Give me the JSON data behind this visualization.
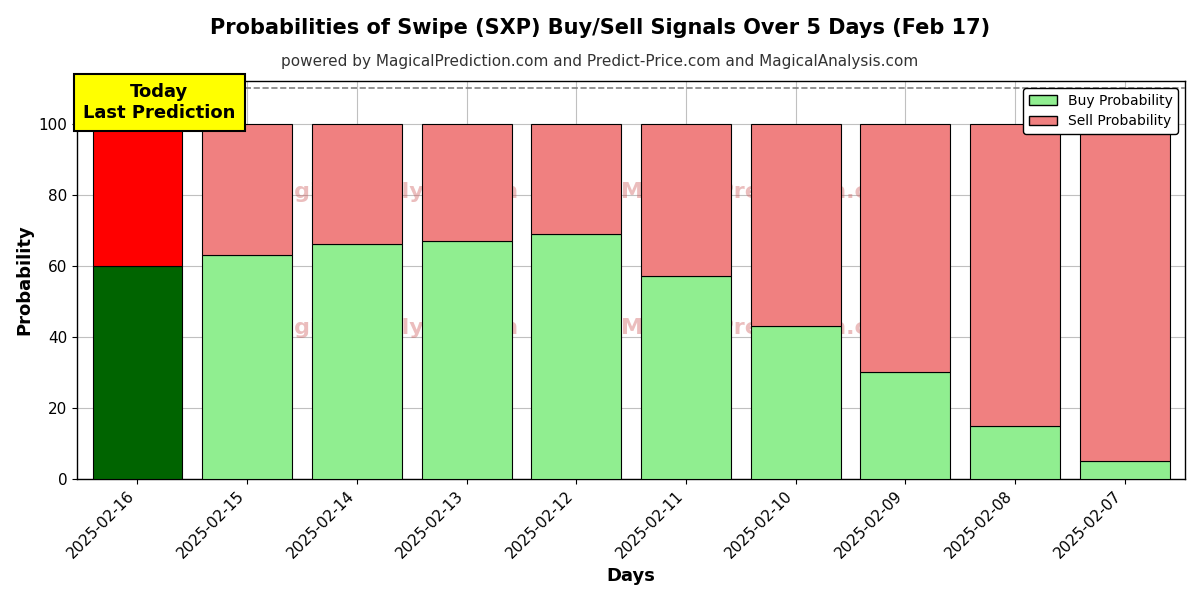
{
  "title": "Probabilities of Swipe (SXP) Buy/Sell Signals Over 5 Days (Feb 17)",
  "subtitle": "powered by MagicalPrediction.com and Predict-Price.com and MagicalAnalysis.com",
  "xlabel": "Days",
  "ylabel": "Probability",
  "dates": [
    "2025-02-16",
    "2025-02-15",
    "2025-02-14",
    "2025-02-13",
    "2025-02-12",
    "2025-02-11",
    "2025-02-10",
    "2025-02-09",
    "2025-02-08",
    "2025-02-07"
  ],
  "buy_values": [
    60,
    63,
    66,
    67,
    69,
    57,
    43,
    30,
    15,
    5
  ],
  "sell_values": [
    40,
    37,
    34,
    33,
    31,
    43,
    57,
    70,
    85,
    95
  ],
  "today_bar_buy_color": "#006400",
  "today_bar_sell_color": "#FF0000",
  "other_bar_buy_color": "#90EE90",
  "other_bar_sell_color": "#F08080",
  "bar_edge_color": "#000000",
  "legend_buy_color": "#90EE90",
  "legend_sell_color": "#F08080",
  "ylim": [
    0,
    112
  ],
  "yticks": [
    0,
    20,
    40,
    60,
    80,
    100
  ],
  "dashed_line_y": 110,
  "annotation_text": "Today\nLast Prediction",
  "annotation_bg": "#FFFF00",
  "background_color": "#FFFFFF",
  "grid_color": "#C0C0C0",
  "title_fontsize": 15,
  "subtitle_fontsize": 11,
  "axis_label_fontsize": 13,
  "tick_fontsize": 11,
  "bar_width": 0.82
}
